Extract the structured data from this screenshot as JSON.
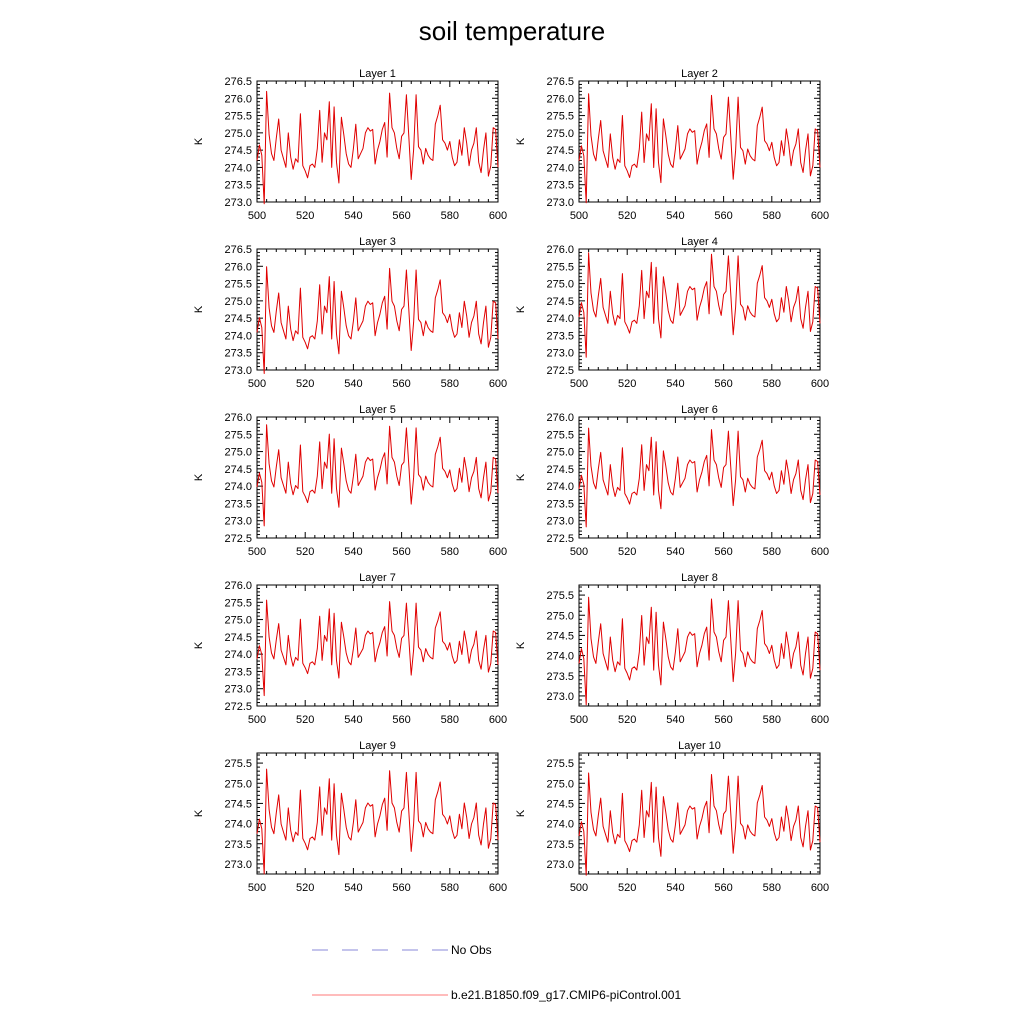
{
  "title": "soil temperature",
  "chart_data": {
    "type": "line",
    "ylabel": "K",
    "xlim": [
      500,
      600
    ],
    "x_ticks": [
      500,
      520,
      540,
      560,
      580,
      600
    ],
    "legend": [
      {
        "label": "No Obs",
        "style": "dashed",
        "color": "#8a8ad8"
      },
      {
        "label": "b.e21.B1850.f09_g17.CMIP6-piControl.001",
        "style": "solid",
        "color": "#ff7a7a"
      }
    ],
    "series_color": "#e00000",
    "x_start": 500,
    "base_pattern": [
      0.25,
      0.7,
      0.4,
      -1.0,
      2.25,
      1.0,
      0.45,
      0.25,
      0.9,
      1.45,
      0.55,
      0.3,
      0.05,
      1.05,
      0.35,
      0.0,
      0.3,
      0.2,
      1.6,
      0.1,
      -0.05,
      -0.25,
      0.1,
      0.15,
      0.05,
      0.6,
      1.7,
      0.2,
      1.05,
      0.85,
      1.95,
      0.05,
      1.8,
      0.2,
      -0.4,
      1.5,
      1.0,
      0.45,
      0.15,
      0.05,
      0.6,
      1.3,
      0.3,
      0.45,
      0.6,
      1.05,
      1.2,
      1.1,
      1.15,
      0.15,
      0.55,
      0.8,
      1.15,
      1.35,
      0.35,
      2.2,
      1.2,
      1.05,
      0.6,
      0.3,
      0.95,
      1.05,
      2.15,
      0.95,
      -0.3,
      0.55,
      2.15,
      0.65,
      0.55,
      0.15,
      0.6,
      0.4,
      0.3,
      0.25,
      1.3,
      1.55,
      1.85,
      0.85,
      0.75,
      0.55,
      0.8,
      0.35,
      0.1,
      0.2,
      0.85,
      0.4,
      1.2,
      0.75,
      0.1,
      0.55,
      0.75,
      1.2,
      0.2,
      -0.1,
      0.55,
      1.05,
      -0.2,
      0.1,
      1.2,
      1.15,
      0.05
    ],
    "panels": [
      {
        "title": "Layer 1",
        "ylim": [
          273.0,
          276.5
        ],
        "yticks": [
          273.0,
          273.5,
          274.0,
          274.5,
          275.0,
          275.5,
          276.0,
          276.5
        ],
        "base": 273.95,
        "scale": 1.0
      },
      {
        "title": "Layer 2",
        "ylim": [
          273.0,
          276.5
        ],
        "yticks": [
          273.0,
          273.5,
          274.0,
          274.5,
          275.0,
          275.5,
          276.0,
          276.5
        ],
        "base": 273.95,
        "scale": 0.97
      },
      {
        "title": "Layer 3",
        "ylim": [
          273.0,
          276.5
        ],
        "yticks": [
          273.0,
          273.5,
          274.0,
          274.5,
          275.0,
          275.5,
          276.0,
          276.5
        ],
        "base": 273.85,
        "scale": 0.95
      },
      {
        "title": "Layer 4",
        "ylim": [
          272.5,
          276.0
        ],
        "yticks": [
          272.5,
          273.0,
          273.5,
          274.0,
          274.5,
          275.0,
          275.5,
          276.0
        ],
        "base": 273.8,
        "scale": 0.93
      },
      {
        "title": "Layer 5",
        "ylim": [
          272.5,
          276.0
        ],
        "yticks": [
          272.5,
          273.0,
          273.5,
          274.0,
          274.5,
          275.0,
          275.5,
          276.0
        ],
        "base": 273.75,
        "scale": 0.9
      },
      {
        "title": "Layer 6",
        "ylim": [
          272.5,
          276.0
        ],
        "yticks": [
          272.5,
          273.0,
          273.5,
          274.0,
          274.5,
          275.0,
          275.5,
          276.0
        ],
        "base": 273.7,
        "scale": 0.88
      },
      {
        "title": "Layer 7",
        "ylim": [
          272.5,
          276.0
        ],
        "yticks": [
          272.5,
          273.0,
          273.5,
          274.0,
          274.5,
          275.0,
          275.5,
          276.0
        ],
        "base": 273.65,
        "scale": 0.85
      },
      {
        "title": "Layer 8",
        "ylim": [
          272.75,
          275.75
        ],
        "yticks": [
          273.0,
          273.5,
          274.0,
          274.5,
          275.0,
          275.5
        ],
        "base": 273.6,
        "scale": 0.82
      },
      {
        "title": "Layer 9",
        "ylim": [
          272.75,
          275.75
        ],
        "yticks": [
          273.0,
          273.5,
          274.0,
          274.5,
          275.0,
          275.5
        ],
        "base": 273.55,
        "scale": 0.8
      },
      {
        "title": "Layer 10",
        "ylim": [
          272.75,
          275.75
        ],
        "yticks": [
          273.0,
          273.5,
          274.0,
          274.5,
          275.0,
          275.5
        ],
        "base": 273.5,
        "scale": 0.78
      }
    ]
  }
}
